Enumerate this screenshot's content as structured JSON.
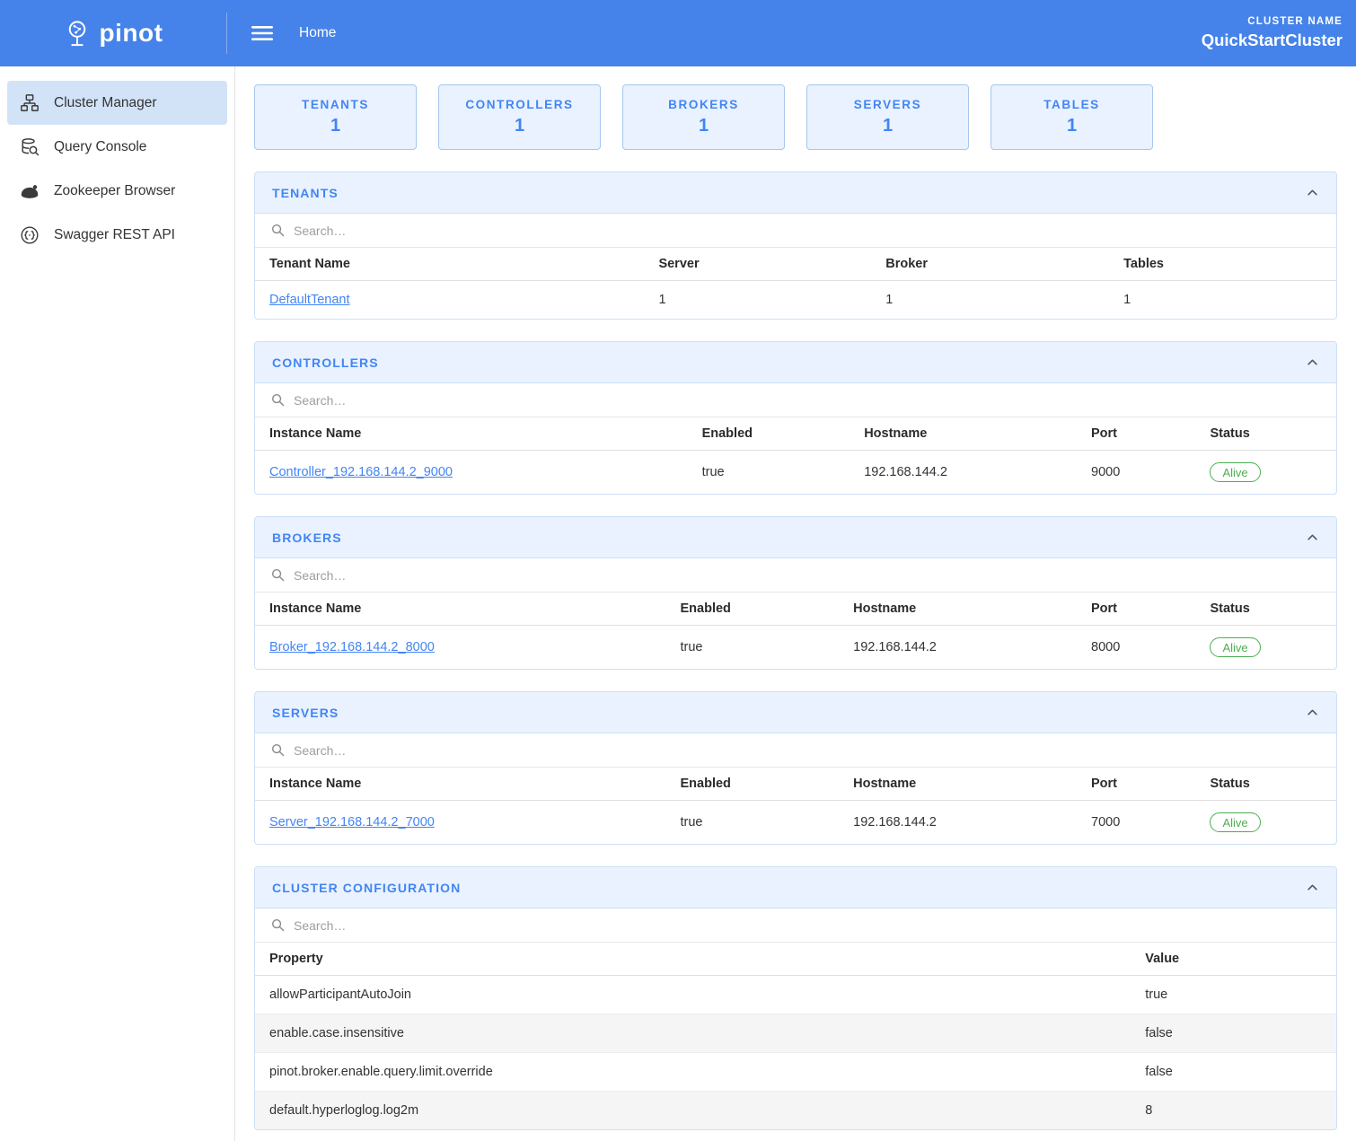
{
  "header": {
    "brand": "pinot",
    "home": "Home",
    "cluster_name_label": "CLUSTER NAME",
    "cluster_name_value": "QuickStartCluster"
  },
  "sidebar": {
    "items": [
      {
        "label": "Cluster Manager",
        "active": true
      },
      {
        "label": "Query Console",
        "active": false
      },
      {
        "label": "Zookeeper Browser",
        "active": false
      },
      {
        "label": "Swagger REST API",
        "active": false
      }
    ]
  },
  "stats": [
    {
      "label": "TENANTS",
      "value": "1"
    },
    {
      "label": "CONTROLLERS",
      "value": "1"
    },
    {
      "label": "BROKERS",
      "value": "1"
    },
    {
      "label": "SERVERS",
      "value": "1"
    },
    {
      "label": "TABLES",
      "value": "1"
    }
  ],
  "search_placeholder": "Search…",
  "sections": [
    {
      "id": "tenants",
      "title": "TENANTS",
      "columns": [
        "Tenant Name",
        "Server",
        "Broker",
        "Tables"
      ],
      "col_widths": [
        "36%",
        "21%",
        "22%",
        "21%"
      ],
      "link_col": 0,
      "status_col": -1,
      "striped": false,
      "rows": [
        [
          "DefaultTenant",
          "1",
          "1",
          "1"
        ]
      ]
    },
    {
      "id": "controllers",
      "title": "CONTROLLERS",
      "columns": [
        "Instance Name",
        "Enabled",
        "Hostname",
        "Port",
        "Status"
      ],
      "col_widths": [
        "40%",
        "15%",
        "21%",
        "11%",
        "13%"
      ],
      "link_col": 0,
      "status_col": 4,
      "striped": false,
      "rows": [
        [
          "Controller_192.168.144.2_9000",
          "true",
          "192.168.144.2",
          "9000",
          "Alive"
        ]
      ]
    },
    {
      "id": "brokers",
      "title": "BROKERS",
      "columns": [
        "Instance Name",
        "Enabled",
        "Hostname",
        "Port",
        "Status"
      ],
      "col_widths": [
        "38%",
        "16%",
        "22%",
        "11%",
        "13%"
      ],
      "link_col": 0,
      "status_col": 4,
      "striped": false,
      "rows": [
        [
          "Broker_192.168.144.2_8000",
          "true",
          "192.168.144.2",
          "8000",
          "Alive"
        ]
      ]
    },
    {
      "id": "servers",
      "title": "SERVERS",
      "columns": [
        "Instance Name",
        "Enabled",
        "Hostname",
        "Port",
        "Status"
      ],
      "col_widths": [
        "38%",
        "16%",
        "22%",
        "11%",
        "13%"
      ],
      "link_col": 0,
      "status_col": 4,
      "striped": false,
      "rows": [
        [
          "Server_192.168.144.2_7000",
          "true",
          "192.168.144.2",
          "7000",
          "Alive"
        ]
      ]
    },
    {
      "id": "cluster-configuration",
      "title": "CLUSTER CONFIGURATION",
      "columns": [
        "Property",
        "Value"
      ],
      "col_widths": [
        "81%",
        "19%"
      ],
      "link_col": -1,
      "status_col": -1,
      "striped": true,
      "rows": [
        [
          "allowParticipantAutoJoin",
          "true"
        ],
        [
          "enable.case.insensitive",
          "false"
        ],
        [
          "pinot.broker.enable.query.limit.override",
          "false"
        ],
        [
          "default.hyperloglog.log2m",
          "8"
        ]
      ]
    }
  ],
  "colors": {
    "topbar": "#4583ea",
    "primary": "#4285f4",
    "panel_header_bg": "#e9f2fe",
    "status_alive": "#4caf50",
    "active_item_bg": "#d2e3f8"
  }
}
